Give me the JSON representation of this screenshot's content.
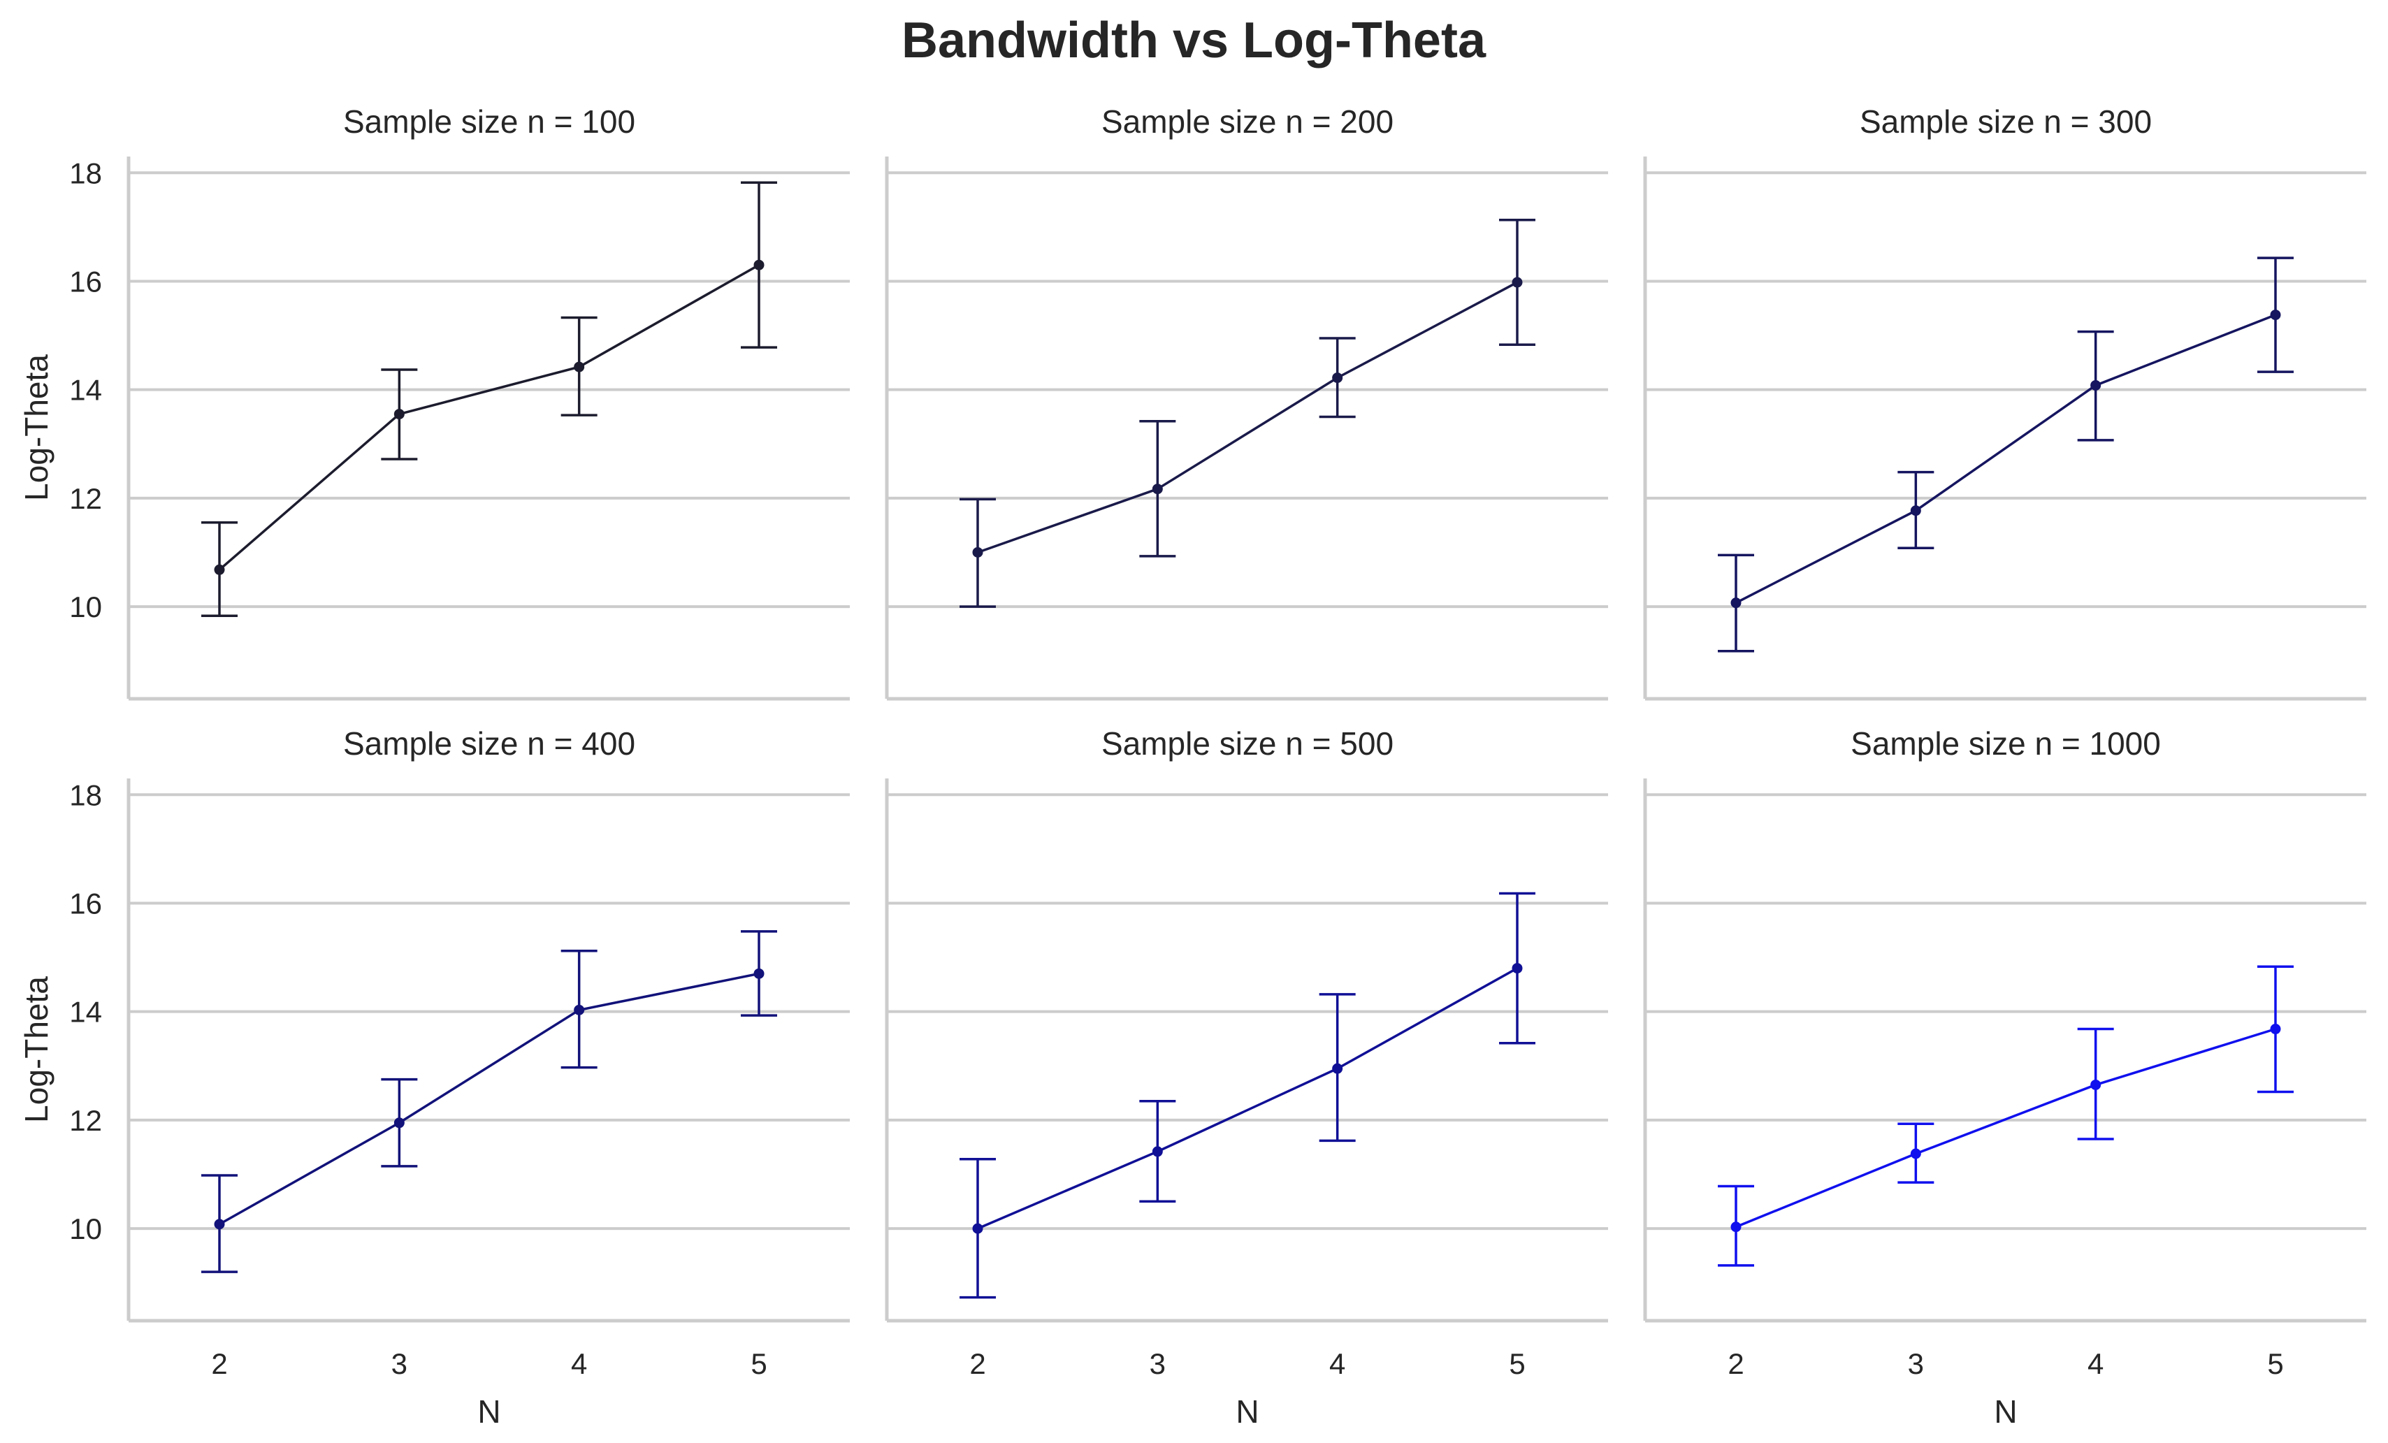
{
  "chart_data": {
    "type": "line",
    "title": "Bandwidth vs Log-Theta",
    "xlabel": "N",
    "ylabel": "Log-Theta",
    "x": [
      2,
      3,
      4,
      5
    ],
    "xticks": [
      "2",
      "3",
      "4",
      "5"
    ],
    "yticks": [
      10,
      12,
      14,
      16,
      18
    ],
    "ylim": [
      8.3,
      18.3
    ],
    "grid": "horizontal",
    "error_bars": true,
    "panels": [
      {
        "title": "Sample size n = 100",
        "color": "#1c1c2e",
        "values": [
          10.68,
          13.55,
          14.42,
          16.3
        ],
        "err_low": [
          9.83,
          12.72,
          13.53,
          14.78
        ],
        "err_high": [
          11.55,
          14.37,
          15.33,
          17.82
        ]
      },
      {
        "title": "Sample size n = 200",
        "color": "#1a1a4a",
        "values": [
          11.0,
          12.17,
          14.22,
          15.98
        ],
        "err_low": [
          10.0,
          10.93,
          13.5,
          14.83
        ],
        "err_high": [
          11.98,
          13.42,
          14.95,
          17.13
        ]
      },
      {
        "title": "Sample size n = 300",
        "color": "#151560",
        "values": [
          10.07,
          11.77,
          14.08,
          15.38
        ],
        "err_low": [
          9.18,
          11.08,
          13.07,
          14.33
        ],
        "err_high": [
          10.95,
          12.48,
          15.07,
          16.43
        ]
      },
      {
        "title": "Sample size n = 400",
        "color": "#12127a",
        "values": [
          10.08,
          11.95,
          14.03,
          14.7
        ],
        "err_low": [
          9.2,
          11.15,
          12.97,
          13.93
        ],
        "err_high": [
          10.98,
          12.75,
          15.12,
          15.48
        ]
      },
      {
        "title": "Sample size n = 500",
        "color": "#101096",
        "values": [
          10.0,
          11.42,
          12.95,
          14.8
        ],
        "err_low": [
          8.73,
          10.5,
          11.62,
          13.42
        ],
        "err_high": [
          11.28,
          12.35,
          14.32,
          16.18
        ]
      },
      {
        "title": "Sample size n = 1000",
        "color": "#1010ee",
        "values": [
          10.03,
          11.38,
          12.65,
          13.68
        ],
        "err_low": [
          9.32,
          10.85,
          11.65,
          12.52
        ],
        "err_high": [
          10.78,
          11.93,
          13.68,
          14.83
        ]
      }
    ]
  }
}
